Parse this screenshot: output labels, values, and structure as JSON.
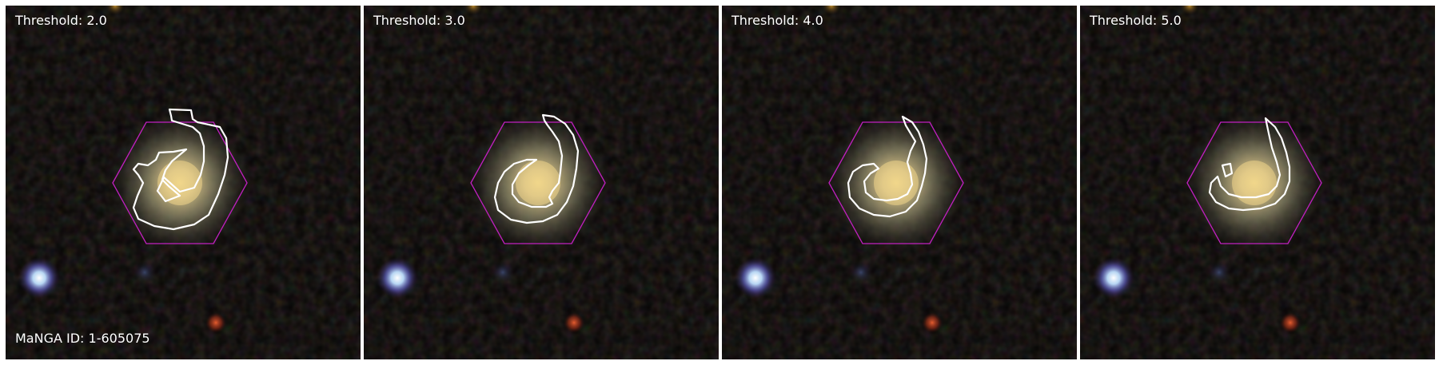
{
  "panels": [
    {
      "threshold_label": "Threshold: 2.0"
    },
    {
      "threshold_label": "Threshold: 3.0"
    },
    {
      "threshold_label": "Threshold: 4.0"
    },
    {
      "threshold_label": "Threshold: 5.0"
    }
  ],
  "galaxy": {
    "id_label": "MaNGA ID: 1-605075"
  },
  "colors": {
    "background": "#050403",
    "hexagon": "#c020c0",
    "contour": "#ffffff",
    "galaxy_core": "#e6c870",
    "star_blue": "#cfe8ff",
    "star_red": "#d2482a"
  }
}
